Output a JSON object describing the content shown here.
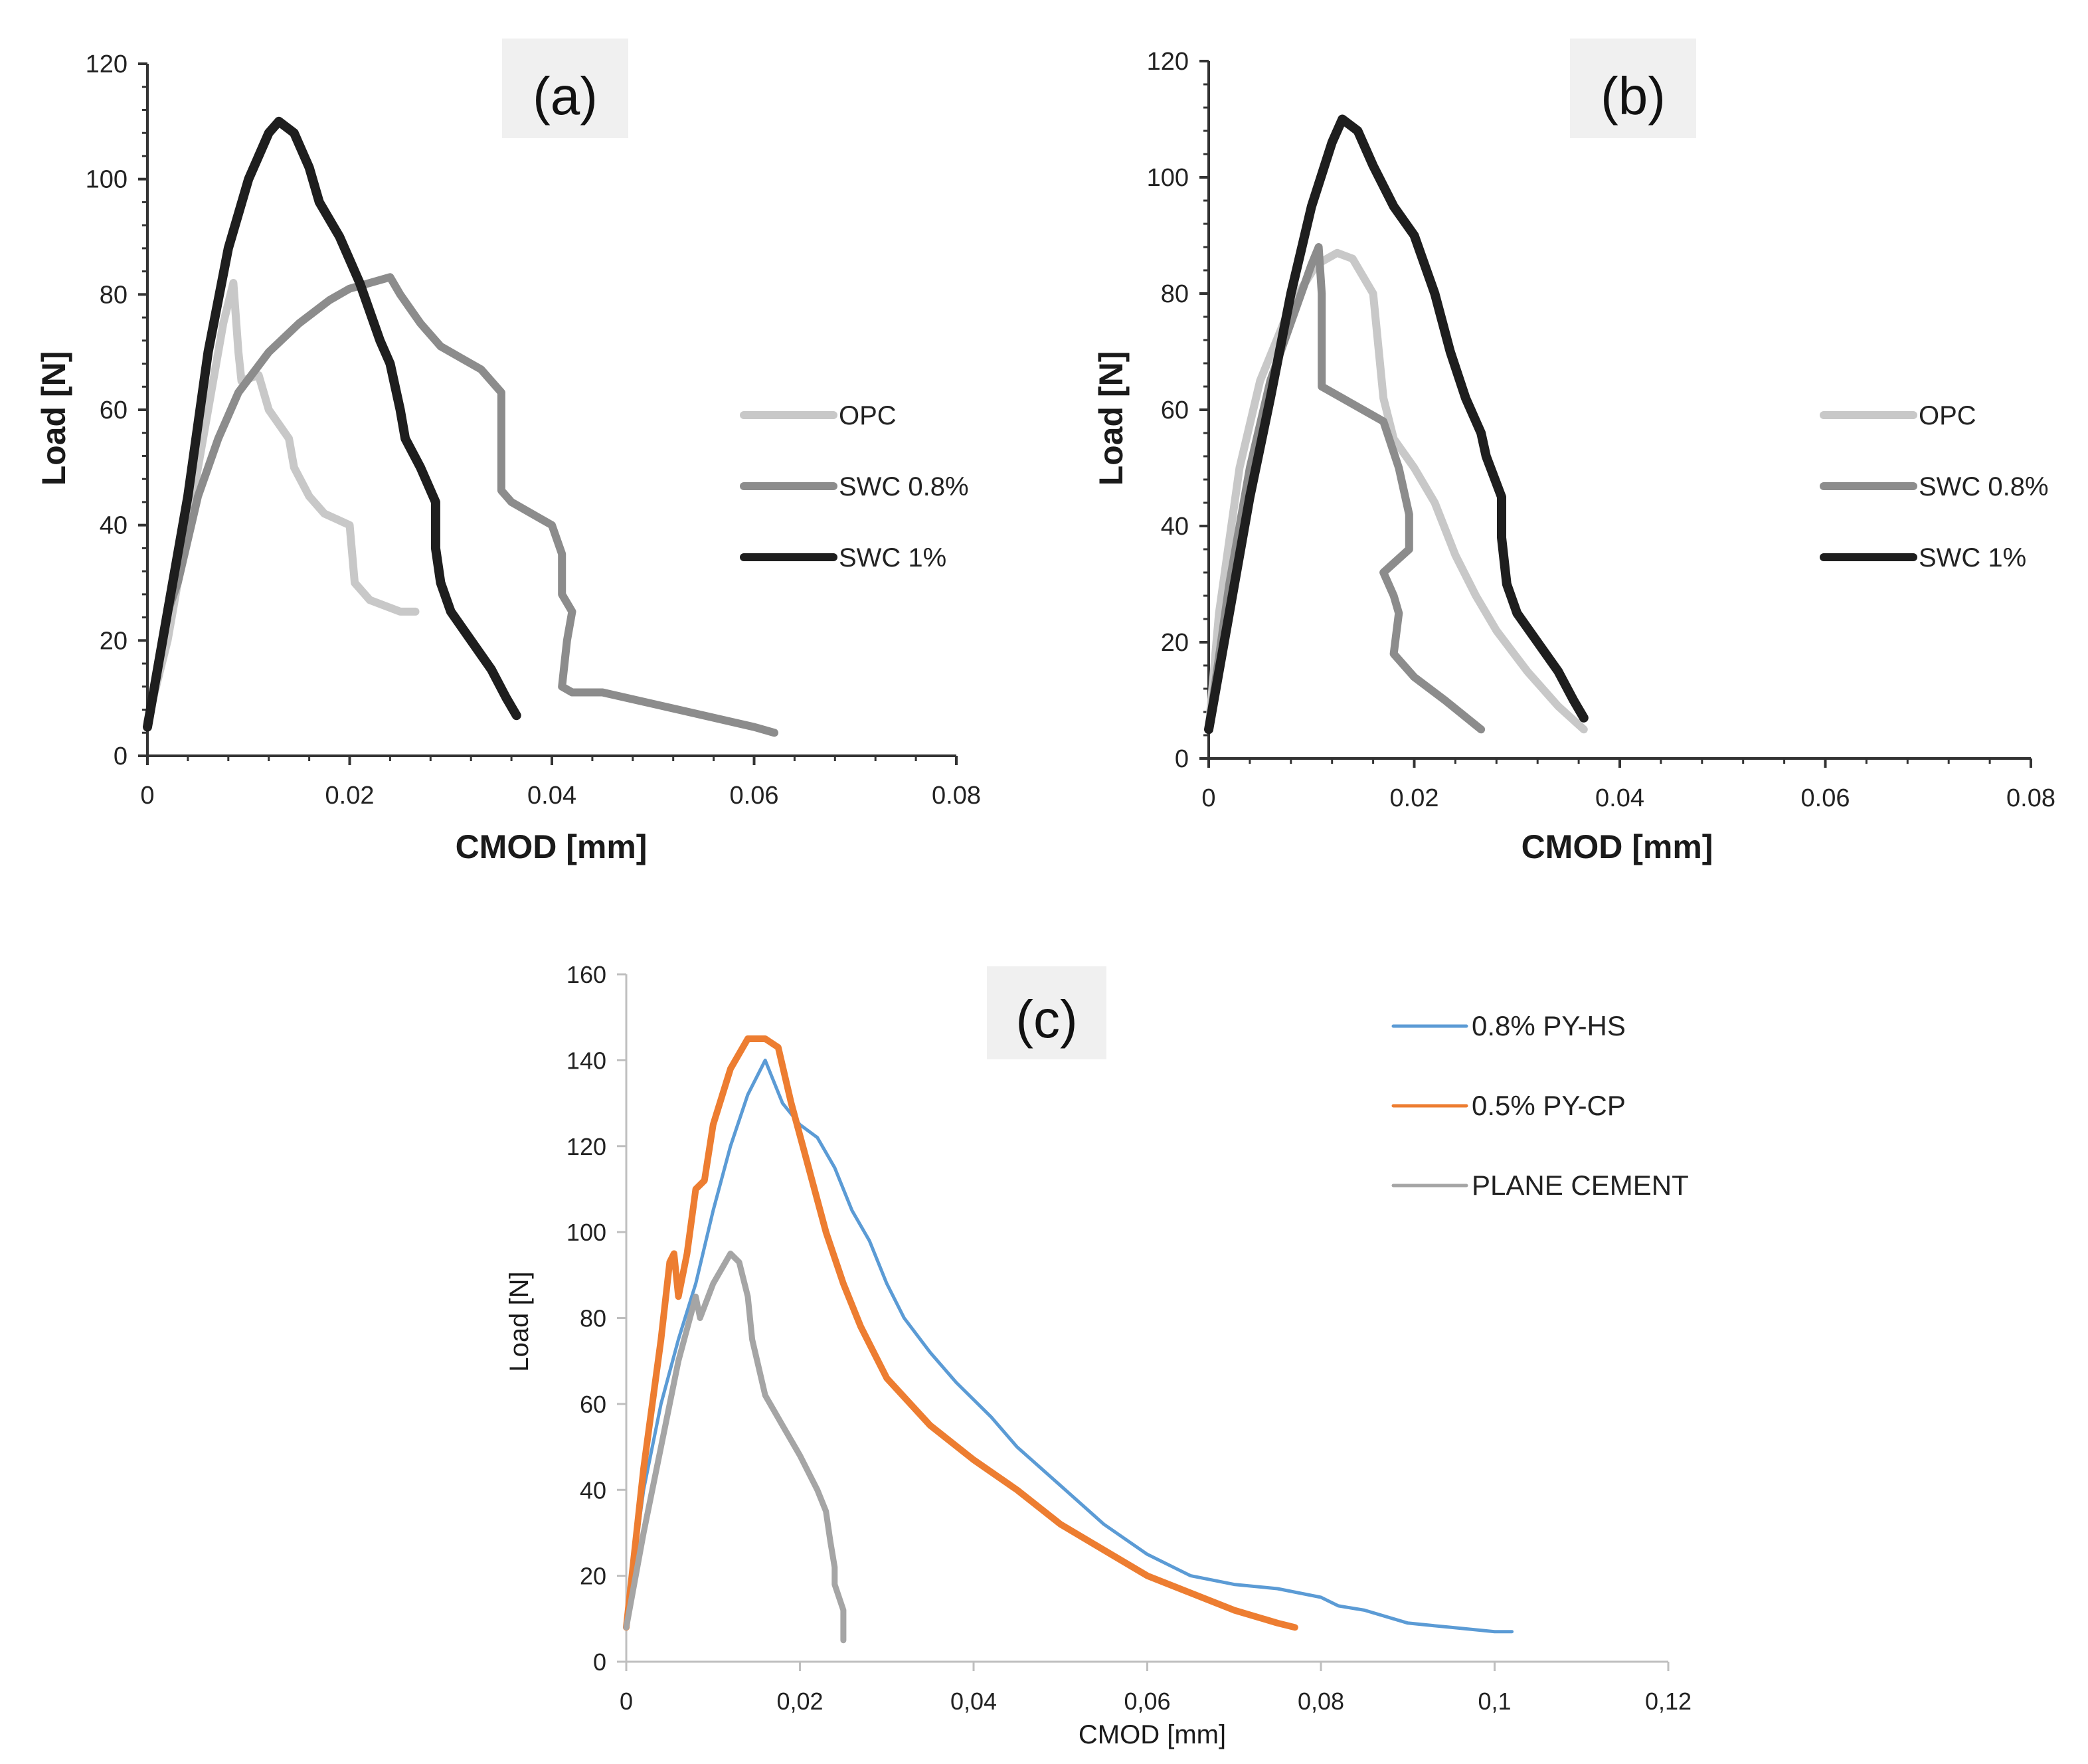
{
  "chart_data": [
    {
      "id": "a",
      "type": "line",
      "panel_label": "(a)",
      "xlabel": "CMOD [mm]",
      "ylabel": "Load  [N]",
      "xlim": [
        0,
        0.08
      ],
      "ylim": [
        0,
        120
      ],
      "x_ticks": [
        "0",
        "0.02",
        "0.04",
        "0.06",
        "0.08"
      ],
      "y_ticks": [
        "0",
        "20",
        "40",
        "60",
        "80",
        "100",
        "120"
      ],
      "legend_position": "right",
      "series": [
        {
          "name": "OPC",
          "color": "#c8c8c8",
          "width": 12,
          "points": [
            [
              0,
              6
            ],
            [
              0.002,
              20
            ],
            [
              0.004,
              40
            ],
            [
              0.006,
              60
            ],
            [
              0.0075,
              75
            ],
            [
              0.0085,
              82
            ],
            [
              0.009,
              70
            ],
            [
              0.0093,
              65
            ],
            [
              0.011,
              66
            ],
            [
              0.012,
              60
            ],
            [
              0.014,
              55
            ],
            [
              0.0145,
              50
            ],
            [
              0.016,
              45
            ],
            [
              0.0175,
              42
            ],
            [
              0.02,
              40
            ],
            [
              0.0205,
              30
            ],
            [
              0.022,
              27
            ],
            [
              0.025,
              25
            ],
            [
              0.0265,
              25
            ]
          ]
        },
        {
          "name": "SWC 0.8%",
          "color": "#8c8c8c",
          "width": 12,
          "points": [
            [
              0,
              5
            ],
            [
              0.001,
              15
            ],
            [
              0.002,
              25
            ],
            [
              0.003,
              30
            ],
            [
              0.005,
              45
            ],
            [
              0.007,
              55
            ],
            [
              0.009,
              63
            ],
            [
              0.012,
              70
            ],
            [
              0.015,
              75
            ],
            [
              0.018,
              79
            ],
            [
              0.02,
              81
            ],
            [
              0.022,
              82
            ],
            [
              0.024,
              83
            ],
            [
              0.025,
              80
            ],
            [
              0.027,
              75
            ],
            [
              0.029,
              71
            ],
            [
              0.031,
              69
            ],
            [
              0.033,
              67
            ],
            [
              0.035,
              63
            ],
            [
              0.035,
              55
            ],
            [
              0.035,
              46
            ],
            [
              0.036,
              44
            ],
            [
              0.038,
              42
            ],
            [
              0.04,
              40
            ],
            [
              0.041,
              35
            ],
            [
              0.041,
              28
            ],
            [
              0.042,
              25
            ],
            [
              0.0415,
              20
            ],
            [
              0.041,
              12
            ],
            [
              0.042,
              11
            ],
            [
              0.045,
              11
            ],
            [
              0.05,
              9
            ],
            [
              0.055,
              7
            ],
            [
              0.06,
              5
            ],
            [
              0.062,
              4
            ]
          ]
        },
        {
          "name": "SWC 1%",
          "color": "#1e1e1e",
          "width": 14,
          "points": [
            [
              0,
              5
            ],
            [
              0.002,
              25
            ],
            [
              0.004,
              45
            ],
            [
              0.006,
              70
            ],
            [
              0.008,
              88
            ],
            [
              0.01,
              100
            ],
            [
              0.012,
              108
            ],
            [
              0.013,
              110
            ],
            [
              0.0145,
              108
            ],
            [
              0.016,
              102
            ],
            [
              0.017,
              96
            ],
            [
              0.019,
              90
            ],
            [
              0.021,
              82
            ],
            [
              0.023,
              72
            ],
            [
              0.024,
              68
            ],
            [
              0.025,
              60
            ],
            [
              0.0255,
              55
            ],
            [
              0.027,
              50
            ],
            [
              0.0285,
              44
            ],
            [
              0.0285,
              36
            ],
            [
              0.029,
              30
            ],
            [
              0.03,
              25
            ],
            [
              0.032,
              20
            ],
            [
              0.034,
              15
            ],
            [
              0.0355,
              10
            ],
            [
              0.0365,
              7
            ]
          ]
        }
      ]
    },
    {
      "id": "b",
      "type": "line",
      "panel_label": "(b)",
      "xlabel": "CMOD  [mm]",
      "ylabel": "Load  [N]",
      "xlim": [
        0,
        0.08
      ],
      "ylim": [
        0,
        120
      ],
      "x_ticks": [
        "0",
        "0.02",
        "0.04",
        "0.06",
        "0.08"
      ],
      "y_ticks": [
        "0",
        "20",
        "40",
        "60",
        "80",
        "100",
        "120"
      ],
      "legend_position": "right",
      "series": [
        {
          "name": "OPC",
          "color": "#c8c8c8",
          "width": 12,
          "points": [
            [
              0,
              5
            ],
            [
              0.001,
              25
            ],
            [
              0.003,
              50
            ],
            [
              0.005,
              65
            ],
            [
              0.008,
              78
            ],
            [
              0.0105,
              85
            ],
            [
              0.0125,
              87
            ],
            [
              0.014,
              86
            ],
            [
              0.016,
              80
            ],
            [
              0.017,
              62
            ],
            [
              0.018,
              55
            ],
            [
              0.02,
              50
            ],
            [
              0.022,
              44
            ],
            [
              0.024,
              35
            ],
            [
              0.026,
              28
            ],
            [
              0.028,
              22
            ],
            [
              0.031,
              15
            ],
            [
              0.034,
              9
            ],
            [
              0.0365,
              5
            ]
          ]
        },
        {
          "name": "SWC 0.8%",
          "color": "#8c8c8c",
          "width": 12,
          "points": [
            [
              0,
              5
            ],
            [
              0.002,
              30
            ],
            [
              0.004,
              50
            ],
            [
              0.006,
              65
            ],
            [
              0.008,
              75
            ],
            [
              0.01,
              85
            ],
            [
              0.0107,
              88
            ],
            [
              0.011,
              80
            ],
            [
              0.011,
              64
            ],
            [
              0.013,
              62
            ],
            [
              0.015,
              60
            ],
            [
              0.017,
              58
            ],
            [
              0.0185,
              50
            ],
            [
              0.0195,
              42
            ],
            [
              0.0195,
              36
            ],
            [
              0.017,
              32
            ],
            [
              0.018,
              28
            ],
            [
              0.0185,
              25
            ],
            [
              0.018,
              18
            ],
            [
              0.02,
              14
            ],
            [
              0.023,
              10
            ],
            [
              0.0265,
              5
            ]
          ]
        },
        {
          "name": "SWC 1%",
          "color": "#1e1e1e",
          "width": 14,
          "points": [
            [
              0,
              5
            ],
            [
              0.002,
              25
            ],
            [
              0.004,
              45
            ],
            [
              0.006,
              62
            ],
            [
              0.008,
              80
            ],
            [
              0.01,
              95
            ],
            [
              0.012,
              106
            ],
            [
              0.013,
              110
            ],
            [
              0.0145,
              108
            ],
            [
              0.016,
              102
            ],
            [
              0.018,
              95
            ],
            [
              0.02,
              90
            ],
            [
              0.022,
              80
            ],
            [
              0.0235,
              70
            ],
            [
              0.025,
              62
            ],
            [
              0.0265,
              56
            ],
            [
              0.027,
              52
            ],
            [
              0.0285,
              45
            ],
            [
              0.0285,
              38
            ],
            [
              0.029,
              30
            ],
            [
              0.03,
              25
            ],
            [
              0.032,
              20
            ],
            [
              0.034,
              15
            ],
            [
              0.0355,
              10
            ],
            [
              0.0365,
              7
            ]
          ]
        }
      ]
    },
    {
      "id": "c",
      "type": "line",
      "panel_label": "(c)",
      "xlabel": "CMOD [mm]",
      "ylabel": "Load [N]",
      "xlim": [
        0,
        0.12
      ],
      "ylim": [
        0,
        160
      ],
      "x_ticks": [
        "0",
        "0,02",
        "0,04",
        "0,06",
        "0,08",
        "0,1",
        "0,12"
      ],
      "y_ticks": [
        "0",
        "20",
        "40",
        "60",
        "80",
        "100",
        "120",
        "140",
        "160"
      ],
      "legend_position": "top-right",
      "series": [
        {
          "name": "0.8% PY-HS",
          "color": "#5b9bd5",
          "width": 5,
          "points": [
            [
              0,
              10
            ],
            [
              0.002,
              40
            ],
            [
              0.004,
              60
            ],
            [
              0.006,
              75
            ],
            [
              0.008,
              88
            ],
            [
              0.01,
              105
            ],
            [
              0.012,
              120
            ],
            [
              0.014,
              132
            ],
            [
              0.016,
              140
            ],
            [
              0.018,
              130
            ],
            [
              0.02,
              125
            ],
            [
              0.022,
              122
            ],
            [
              0.024,
              115
            ],
            [
              0.026,
              105
            ],
            [
              0.028,
              98
            ],
            [
              0.03,
              88
            ],
            [
              0.032,
              80
            ],
            [
              0.035,
              72
            ],
            [
              0.038,
              65
            ],
            [
              0.042,
              57
            ],
            [
              0.045,
              50
            ],
            [
              0.05,
              41
            ],
            [
              0.055,
              32
            ],
            [
              0.06,
              25
            ],
            [
              0.065,
              20
            ],
            [
              0.07,
              18
            ],
            [
              0.075,
              17
            ],
            [
              0.08,
              15
            ],
            [
              0.082,
              13
            ],
            [
              0.085,
              12
            ],
            [
              0.09,
              9
            ],
            [
              0.095,
              8
            ],
            [
              0.1,
              7
            ],
            [
              0.102,
              7
            ]
          ]
        },
        {
          "name": "0.5% PY-CP",
          "color": "#ed7d31",
          "width": 10,
          "points": [
            [
              0,
              8
            ],
            [
              0.002,
              45
            ],
            [
              0.004,
              75
            ],
            [
              0.005,
              93
            ],
            [
              0.0055,
              95
            ],
            [
              0.006,
              85
            ],
            [
              0.007,
              95
            ],
            [
              0.008,
              110
            ],
            [
              0.009,
              112
            ],
            [
              0.01,
              125
            ],
            [
              0.012,
              138
            ],
            [
              0.014,
              145
            ],
            [
              0.016,
              145
            ],
            [
              0.0175,
              143
            ],
            [
              0.019,
              130
            ],
            [
              0.021,
              115
            ],
            [
              0.023,
              100
            ],
            [
              0.025,
              88
            ],
            [
              0.027,
              78
            ],
            [
              0.03,
              66
            ],
            [
              0.035,
              55
            ],
            [
              0.04,
              47
            ],
            [
              0.045,
              40
            ],
            [
              0.05,
              32
            ],
            [
              0.055,
              26
            ],
            [
              0.06,
              20
            ],
            [
              0.065,
              16
            ],
            [
              0.07,
              12
            ],
            [
              0.075,
              9
            ],
            [
              0.077,
              8
            ]
          ]
        },
        {
          "name": "PLANE CEMENT",
          "color": "#a5a5a5",
          "width": 9,
          "points": [
            [
              0,
              8
            ],
            [
              0.002,
              30
            ],
            [
              0.004,
              50
            ],
            [
              0.006,
              70
            ],
            [
              0.008,
              85
            ],
            [
              0.0085,
              80
            ],
            [
              0.01,
              88
            ],
            [
              0.012,
              95
            ],
            [
              0.013,
              93
            ],
            [
              0.014,
              85
            ],
            [
              0.0145,
              75
            ],
            [
              0.016,
              62
            ],
            [
              0.018,
              55
            ],
            [
              0.02,
              48
            ],
            [
              0.022,
              40
            ],
            [
              0.023,
              35
            ],
            [
              0.0235,
              28
            ],
            [
              0.024,
              22
            ],
            [
              0.024,
              18
            ],
            [
              0.025,
              12
            ],
            [
              0.025,
              8
            ],
            [
              0.025,
              5
            ]
          ]
        }
      ]
    }
  ]
}
